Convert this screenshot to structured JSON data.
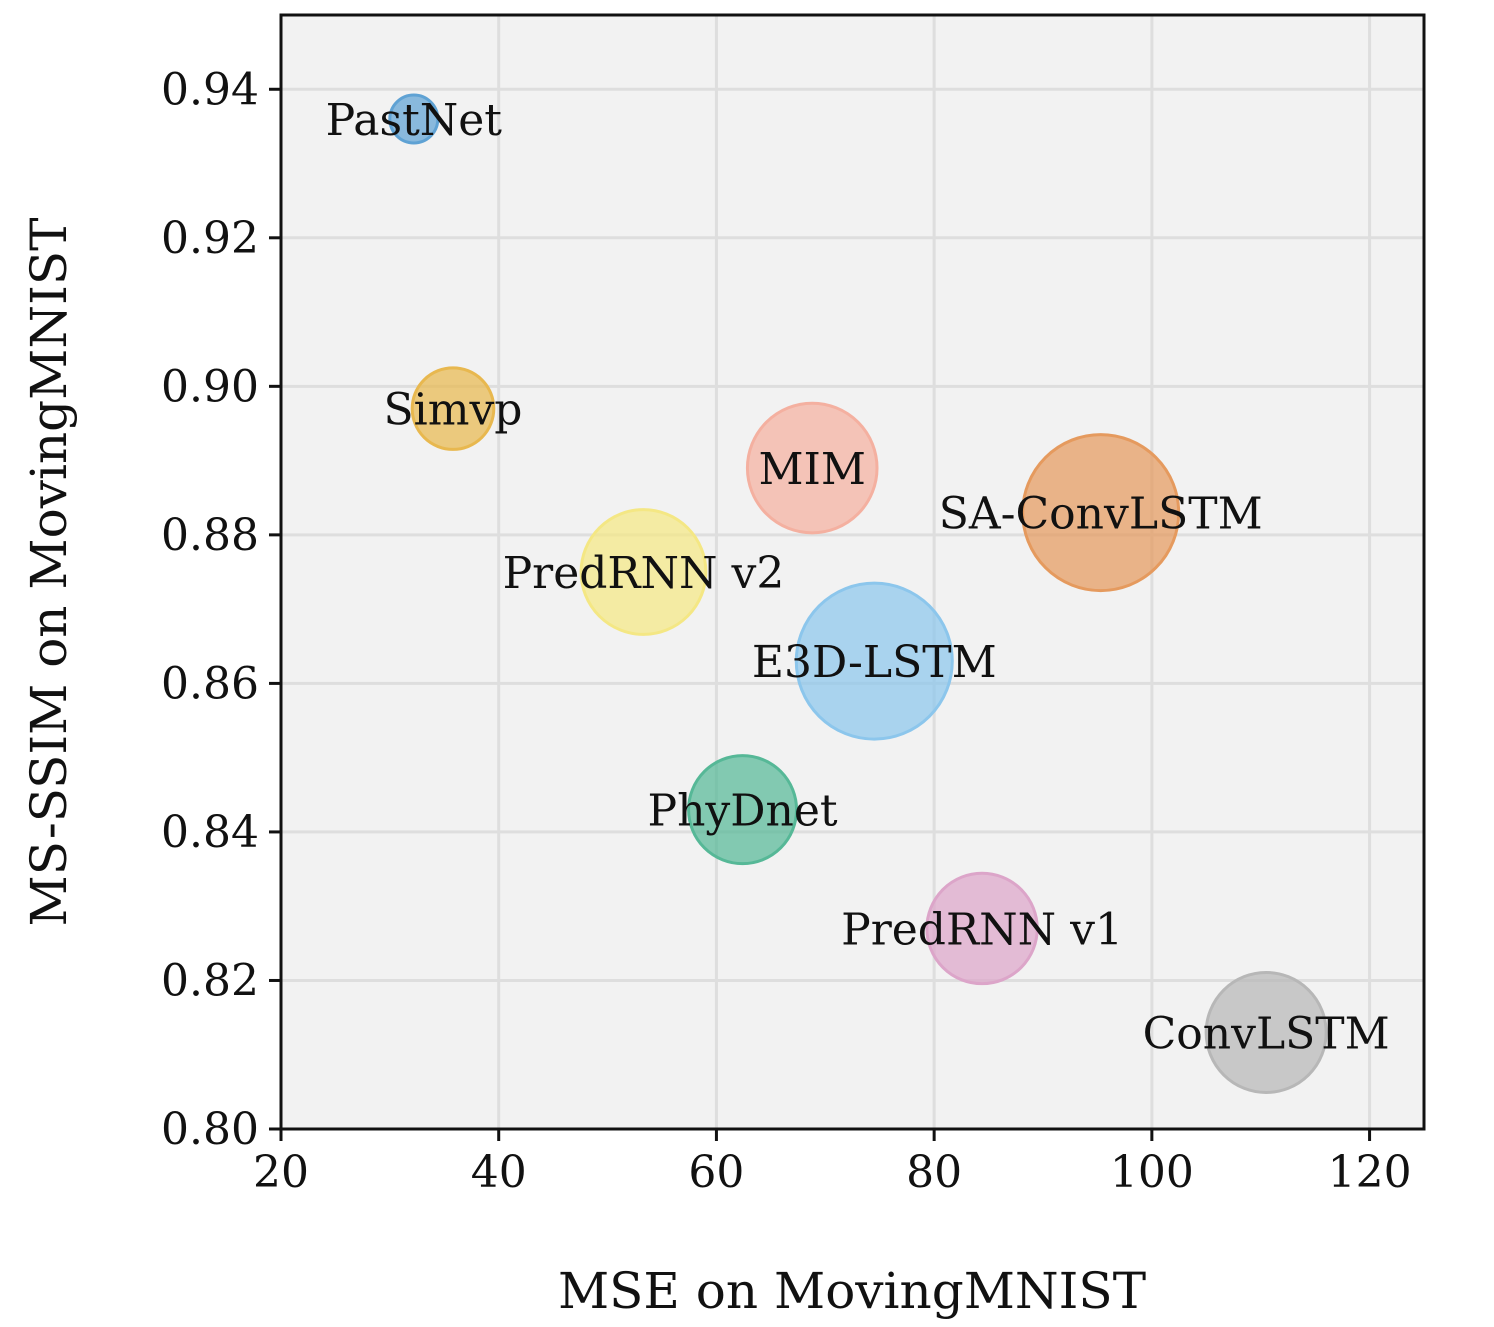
{
  "chart_data": {
    "type": "scatter",
    "title": "",
    "xlabel": "MSE on MovingMNIST",
    "ylabel": "MS-SSIM on MovingMNIST",
    "xlim": [
      20,
      125
    ],
    "ylim": [
      0.8,
      0.95
    ],
    "xticks": [
      "20",
      "40",
      "60",
      "80",
      "100",
      "120"
    ],
    "xtick_values": [
      20,
      40,
      60,
      80,
      100,
      120
    ],
    "yticks": [
      "0.80",
      "0.82",
      "0.84",
      "0.86",
      "0.88",
      "0.90",
      "0.92",
      "0.94"
    ],
    "ytick_values": [
      0.8,
      0.82,
      0.84,
      0.86,
      0.88,
      0.9,
      0.92,
      0.94
    ],
    "grid": true,
    "points": [
      {
        "name": "PastNet",
        "x": 32.2,
        "y": 0.936,
        "size": 1.0,
        "color": "#5fa2d4"
      },
      {
        "name": "Simvp",
        "x": 35.8,
        "y": 0.897,
        "size": 1.7,
        "color": "#e8b84f"
      },
      {
        "name": "MIM",
        "x": 68.8,
        "y": 0.889,
        "size": 2.7,
        "color": "#f4b0a0"
      },
      {
        "name": "SA-ConvLSTM",
        "x": 95.3,
        "y": 0.883,
        "size": 3.25,
        "color": "#e59a5e"
      },
      {
        "name": "PredRNN v2",
        "x": 53.3,
        "y": 0.875,
        "size": 2.6,
        "color": "#f4e784"
      },
      {
        "name": "E3D-LSTM",
        "x": 74.5,
        "y": 0.863,
        "size": 3.25,
        "color": "#8cc6ec"
      },
      {
        "name": "PhyDnet",
        "x": 62.4,
        "y": 0.843,
        "size": 2.25,
        "color": "#56b897"
      },
      {
        "name": "PredRNN v1",
        "x": 84.4,
        "y": 0.827,
        "size": 2.3,
        "color": "#dca5c9"
      },
      {
        "name": "ConvLSTM",
        "x": 110.5,
        "y": 0.813,
        "size": 2.5,
        "color": "#b7b7b7"
      }
    ]
  }
}
